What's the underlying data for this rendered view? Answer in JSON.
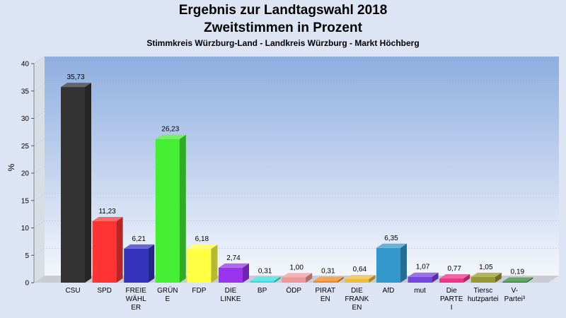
{
  "title": "Ergebnis zur Landtagswahl 2018",
  "subtitle": "Zweitstimmen in Prozent",
  "subsubtitle": "Stimmkreis Würzburg-Land - Landkreis Würzburg - Markt Höchberg",
  "chart_data": {
    "type": "bar",
    "ylabel": "%",
    "ylim": [
      0,
      40
    ],
    "yticks": [
      0,
      5,
      10,
      15,
      20,
      25,
      30,
      35,
      40
    ],
    "grid": true,
    "categories": [
      {
        "label": [
          "CSU"
        ],
        "value": 35.73,
        "display": "35,73",
        "color": "#333333"
      },
      {
        "label": [
          "SPD"
        ],
        "value": 11.23,
        "display": "11,23",
        "color": "#ff3333"
      },
      {
        "label": [
          "FREIE",
          "WÄHL",
          "ER"
        ],
        "value": 6.21,
        "display": "6,21",
        "color": "#3333bb"
      },
      {
        "label": [
          "GRÜN",
          "E"
        ],
        "value": 26.23,
        "display": "26,23",
        "color": "#44ee33"
      },
      {
        "label": [
          "FDP"
        ],
        "value": 6.18,
        "display": "6,18",
        "color": "#ffff44"
      },
      {
        "label": [
          "DIE",
          "LINKE"
        ],
        "value": 2.74,
        "display": "2,74",
        "color": "#9933ee"
      },
      {
        "label": [
          "BP"
        ],
        "value": 0.31,
        "display": "0,31",
        "color": "#33dddd"
      },
      {
        "label": [
          "ÖDP"
        ],
        "value": 1.0,
        "display": "1,00",
        "color": "#ee9999"
      },
      {
        "label": [
          "PIRAT",
          "EN"
        ],
        "value": 0.31,
        "display": "0,31",
        "color": "#ee8822"
      },
      {
        "label": [
          "DIE",
          "FRANK",
          "EN"
        ],
        "value": 0.64,
        "display": "0,64",
        "color": "#eebb33"
      },
      {
        "label": [
          "AfD"
        ],
        "value": 6.35,
        "display": "6,35",
        "color": "#3399cc"
      },
      {
        "label": [
          "mut"
        ],
        "value": 1.07,
        "display": "1,07",
        "color": "#7744dd"
      },
      {
        "label": [
          "Die",
          "PARTE",
          "I"
        ],
        "value": 0.77,
        "display": "0,77",
        "color": "#ee3388"
      },
      {
        "label": [
          "Tiersc",
          "hutzpartei"
        ],
        "value": 1.05,
        "display": "1,05",
        "color": "#999933"
      },
      {
        "label": [
          "V-",
          "Partei³"
        ],
        "value": 0.19,
        "display": "0,19",
        "color": "#338833"
      }
    ]
  }
}
